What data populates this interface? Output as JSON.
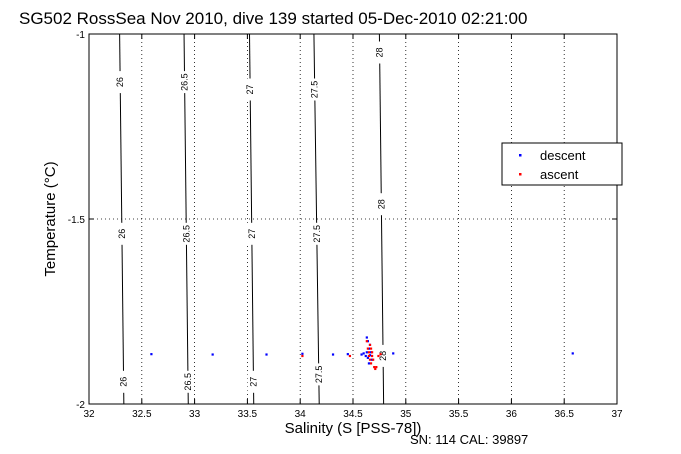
{
  "chart_data": {
    "type": "scatter",
    "title": "SG502 RossSea Nov 2010, dive 139 started 05-Dec-2010 02:21:00",
    "xlabel": "Salinity (S [PSS-78])",
    "ylabel": "Temperature (°C)",
    "xlim": [
      32,
      37
    ],
    "ylim": [
      -2,
      -1
    ],
    "x_ticks": [
      "32",
      "32.5",
      "33",
      "33.5",
      "34",
      "34.5",
      "35",
      "35.5",
      "36",
      "36.5",
      "37"
    ],
    "y_ticks": [
      "-2",
      "-1.5",
      "-1"
    ],
    "grid": true,
    "legend_position": "right",
    "footer": "SN: 114  CAL: 39897",
    "density_contours": [
      {
        "label": "26",
        "x": [
          32.29,
          32.33
        ],
        "label_positions": [
          -1.13,
          -1.54,
          -1.94
        ]
      },
      {
        "label": "26.5",
        "x": [
          32.9,
          32.94
        ],
        "label_positions": [
          -1.13,
          -1.54,
          -1.94
        ]
      },
      {
        "label": "27",
        "x": [
          33.52,
          33.56
        ],
        "label_positions": [
          -1.15,
          -1.54,
          -1.94
        ]
      },
      {
        "label": "27.5",
        "x": [
          34.13,
          34.18
        ],
        "label_positions": [
          -1.15,
          -1.54,
          -1.92
        ]
      },
      {
        "label": "28",
        "x": [
          34.75,
          34.79
        ],
        "label_positions": [
          -1.05,
          -1.46,
          -1.87
        ]
      }
    ],
    "series": [
      {
        "name": "descent",
        "color": "#0000ff",
        "points": [
          [
            32.59,
            -1.865
          ],
          [
            33.17,
            -1.866
          ],
          [
            33.68,
            -1.866
          ],
          [
            34.02,
            -1.864
          ],
          [
            34.31,
            -1.866
          ],
          [
            34.45,
            -1.865
          ],
          [
            34.58,
            -1.866
          ],
          [
            34.6,
            -1.863
          ],
          [
            34.62,
            -1.87
          ],
          [
            34.63,
            -1.82
          ],
          [
            34.63,
            -1.86
          ],
          [
            34.64,
            -1.83
          ],
          [
            34.64,
            -1.875
          ],
          [
            34.65,
            -1.85
          ],
          [
            34.65,
            -1.89
          ],
          [
            34.66,
            -1.84
          ],
          [
            34.66,
            -1.868
          ],
          [
            34.67,
            -1.86
          ],
          [
            34.68,
            -1.88
          ],
          [
            34.88,
            -1.863
          ],
          [
            36.58,
            -1.863
          ]
        ]
      },
      {
        "name": "ascent",
        "color": "#ff0000",
        "points": [
          [
            34.02,
            -1.87
          ],
          [
            34.47,
            -1.87
          ],
          [
            34.63,
            -1.83
          ],
          [
            34.64,
            -1.85
          ],
          [
            34.65,
            -1.86
          ],
          [
            34.65,
            -1.87
          ],
          [
            34.66,
            -1.84
          ],
          [
            34.66,
            -1.88
          ],
          [
            34.67,
            -1.85
          ],
          [
            34.67,
            -1.89
          ],
          [
            34.68,
            -1.86
          ],
          [
            34.68,
            -1.87
          ],
          [
            34.69,
            -1.88
          ],
          [
            34.7,
            -1.9
          ],
          [
            34.71,
            -1.905
          ],
          [
            34.72,
            -1.9
          ],
          [
            34.74,
            -1.87
          ],
          [
            34.76,
            -1.865
          ]
        ]
      }
    ]
  }
}
